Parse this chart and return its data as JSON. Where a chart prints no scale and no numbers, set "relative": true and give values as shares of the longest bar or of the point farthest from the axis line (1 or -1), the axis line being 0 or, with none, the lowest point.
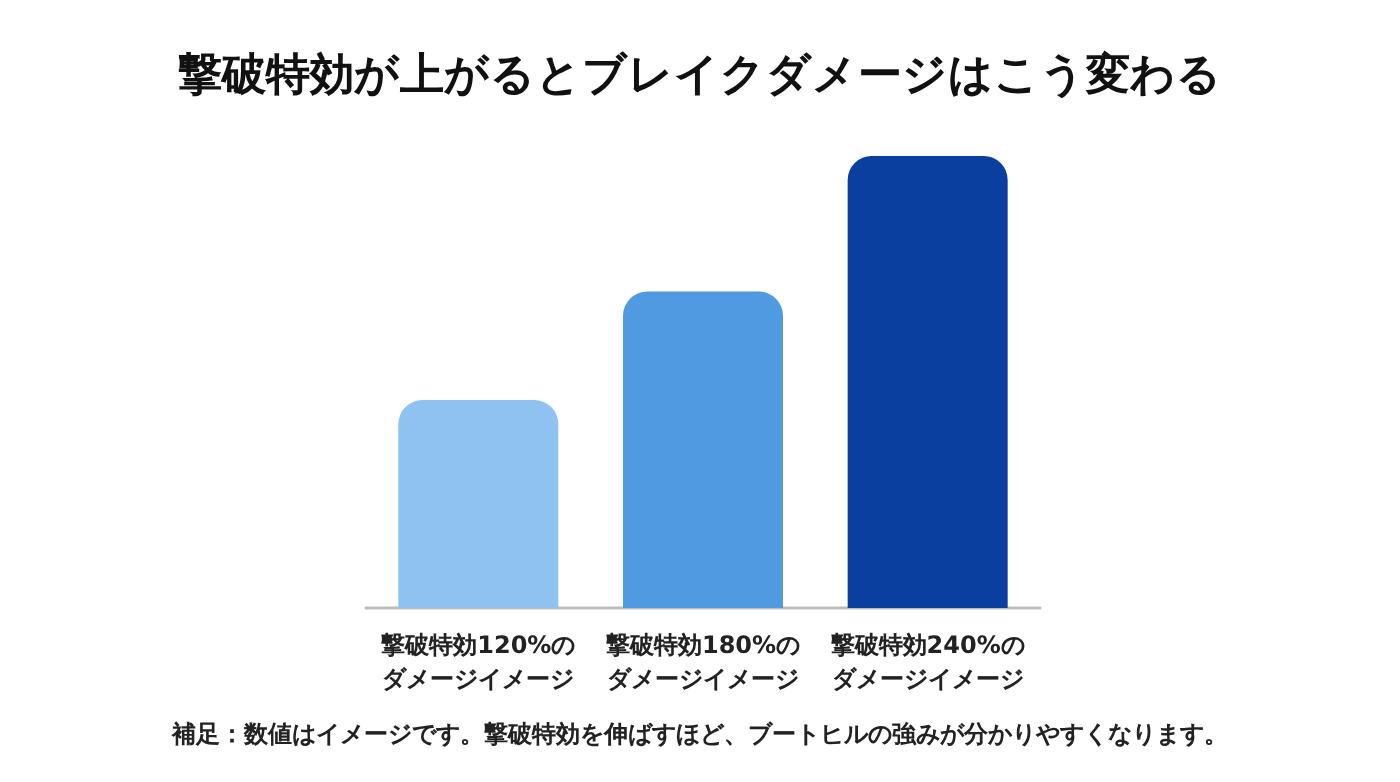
{
  "chart_data": {
    "type": "bar",
    "title": "撃破特効が上がるとブレイクダメージはこう変わる",
    "relative": true,
    "categories": [
      "撃破特効120%のダメージイメージ",
      "撃破特効180%のダメージイメージ",
      "撃破特効240%のダメージイメージ"
    ],
    "values": [
      0.46,
      0.7,
      1
    ],
    "colors": [
      "#90c2f1",
      "#509ae2",
      "#0b3f9f"
    ],
    "annotations": [
      "補足：数値はイメージです。撃破特効を伸ばすほど、ブートヒルの強みが分かりやすくなります。"
    ]
  }
}
